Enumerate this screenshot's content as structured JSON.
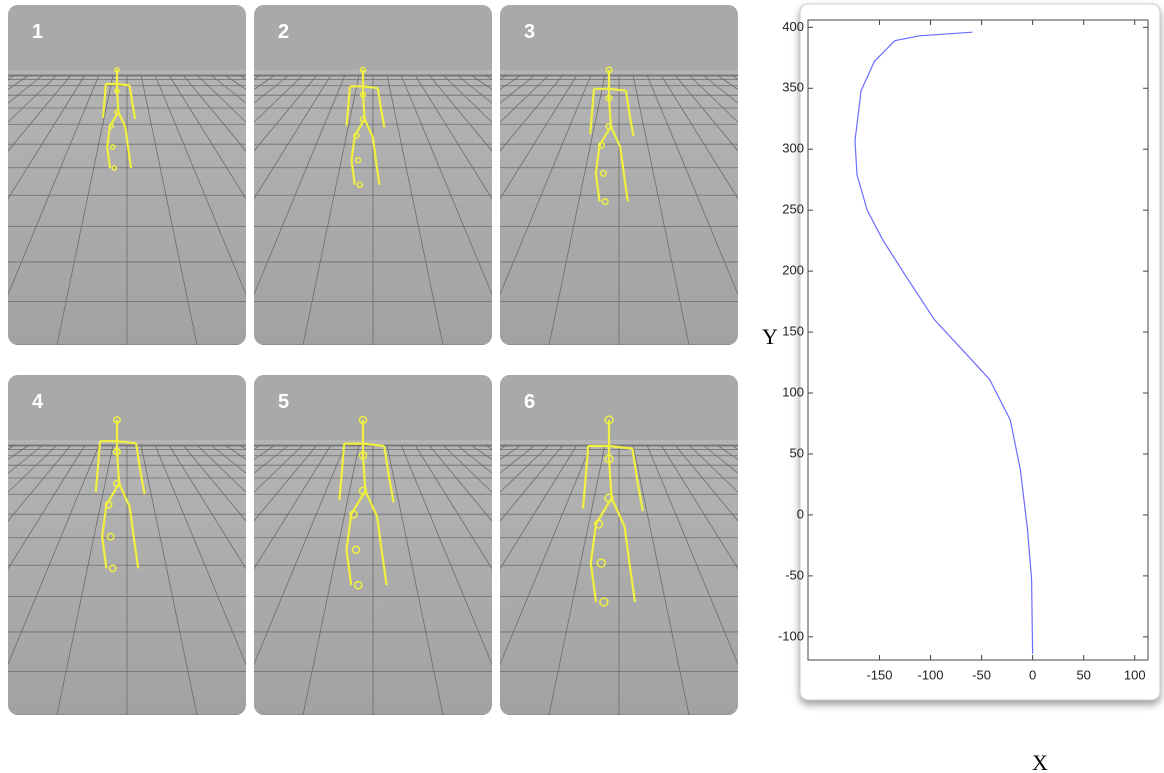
{
  "panels": [
    "1",
    "2",
    "3",
    "4",
    "5",
    "6"
  ],
  "chart_data": {
    "type": "line",
    "x_label": "X",
    "y_label": "Y",
    "x": [
      -59,
      -111,
      -135,
      -155,
      -168,
      -174,
      -172,
      -162,
      -147,
      -125,
      -96,
      -64,
      -42,
      -22,
      -12,
      -5,
      -1,
      0
    ],
    "values": [
      396,
      393,
      389,
      372,
      348,
      307,
      279,
      250,
      226,
      197,
      160,
      131,
      111,
      78,
      37,
      -12,
      -53,
      -114
    ],
    "color": "#6b6bff",
    "xlim": [
      -220,
      113
    ],
    "xticks": [
      -150,
      -100,
      -50,
      0,
      50,
      100
    ],
    "ylim": [
      -119,
      406
    ],
    "yticks": [
      -100,
      -50,
      0,
      50,
      100,
      150,
      200,
      250,
      300,
      350,
      400
    ]
  }
}
